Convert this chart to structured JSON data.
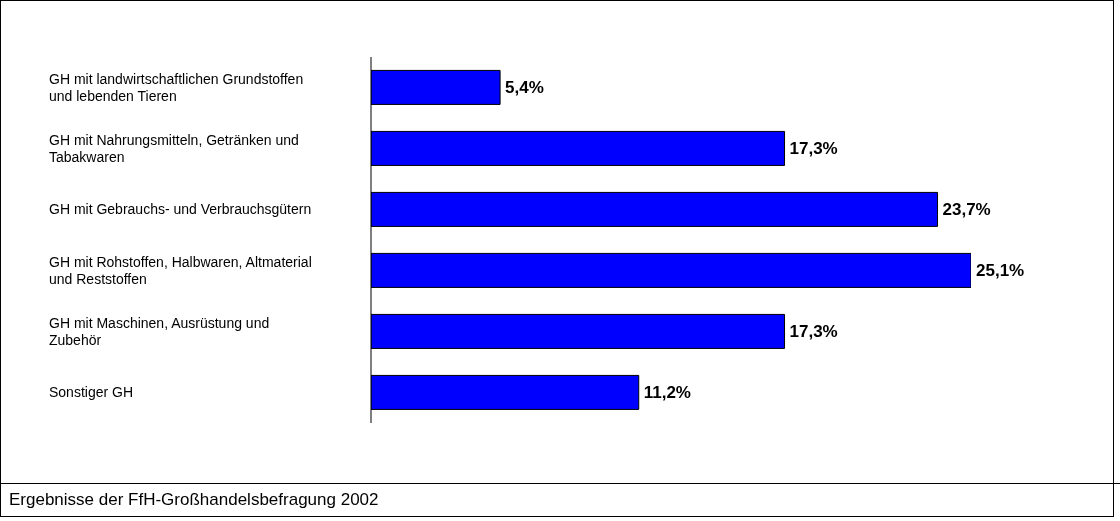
{
  "chart_data": {
    "type": "bar",
    "orientation": "horizontal",
    "categories": [
      "GH mit landwirtschaftlichen Grundstoffen und lebenden Tieren",
      "GH mit Nahrungsmitteln, Getränken und Tabakwaren",
      "GH mit Gebrauchs- und Verbrauchsgütern",
      "GH mit Rohstoffen, Halbwaren, Altmaterial und Reststoffen",
      "GH mit Maschinen, Ausrüstung und Zubehör",
      "Sonstiger GH"
    ],
    "values": [
      5.4,
      17.3,
      23.7,
      25.1,
      17.3,
      11.2
    ],
    "value_labels": [
      "5,4%",
      "17,3%",
      "23,7%",
      "25,1%",
      "17,3%",
      "11,2%"
    ],
    "color": "#0000ff",
    "tick_labels": "y",
    "grid": false,
    "legend": false,
    "annotations": [
      "Ergebnisse der FfH-Großhandelsbefragung 2002"
    ]
  }
}
